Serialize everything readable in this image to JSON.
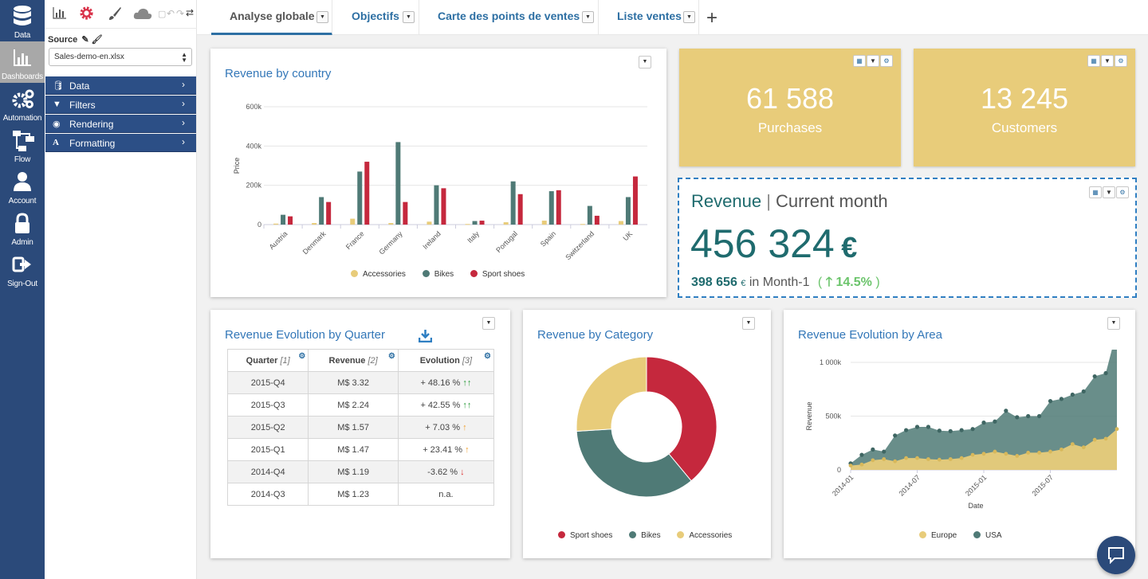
{
  "nav": [
    {
      "label": "Data",
      "icon": "database-icon"
    },
    {
      "label": "Dashboards",
      "icon": "bar-chart-icon",
      "active": true
    },
    {
      "label": "Automation",
      "icon": "gears-icon"
    },
    {
      "label": "Flow",
      "icon": "flow-icon"
    },
    {
      "label": "Account",
      "icon": "user-icon"
    },
    {
      "label": "Admin",
      "icon": "lock-icon"
    },
    {
      "label": "Sign-Out",
      "icon": "sign-out-icon"
    }
  ],
  "panel": {
    "source_label": "Source",
    "source_file": "Sales-demo-en.xlsx",
    "sections": [
      {
        "label": "Data",
        "icon": "database-icon"
      },
      {
        "label": "Filters",
        "icon": "filter-icon"
      },
      {
        "label": "Rendering",
        "icon": "eye-icon"
      },
      {
        "label": "Formatting",
        "icon": "font-icon"
      }
    ]
  },
  "tabs": [
    {
      "label": "Analyse globale",
      "active": true
    },
    {
      "label": "Objectifs"
    },
    {
      "label": "Carte des points de ventes"
    },
    {
      "label": "Liste ventes"
    }
  ],
  "add_tab": "+",
  "colors": {
    "accessories": "#e8cc7a",
    "bikes": "#4f7a76",
    "sport_shoes": "#c5283d",
    "nav_bg": "#2b4a7a",
    "title_blue": "#3377b8",
    "kpi_bg": "#e8cc7a",
    "revenue_teal": "#1f6b6e"
  },
  "revenue_by_country": {
    "title": "Revenue by country"
  },
  "kpis": [
    {
      "value": "61 588",
      "label": "Purchases"
    },
    {
      "value": "13 245",
      "label": "Customers"
    }
  ],
  "revenue_month": {
    "title_main": "Revenue",
    "title_sep": " | ",
    "title_sub": "Current month",
    "value": "456 324",
    "currency": "€",
    "prev_value": "398 656",
    "prev_currency": "€",
    "prev_label": "in Month-1",
    "change_open": "(",
    "change": "14.5%",
    "change_close": ")"
  },
  "quarter": {
    "title": "Revenue Evolution by Quarter",
    "headers": [
      {
        "label": "Quarter",
        "idx": "[1]"
      },
      {
        "label": "Revenue",
        "idx": "[2]"
      },
      {
        "label": "Evolution",
        "idx": "[3]"
      }
    ],
    "rows": [
      {
        "q": "2015-Q4",
        "rev": "M$ 3.32",
        "evo": "+ 48.16 %",
        "arrow": "↑↑",
        "cls": "up-g"
      },
      {
        "q": "2015-Q3",
        "rev": "M$ 2.24",
        "evo": "+ 42.55 %",
        "arrow": "↑↑",
        "cls": "up-g"
      },
      {
        "q": "2015-Q2",
        "rev": "M$ 1.57",
        "evo": "+ 7.03 %",
        "arrow": "↑",
        "cls": "up-o"
      },
      {
        "q": "2015-Q1",
        "rev": "M$ 1.47",
        "evo": "+ 23.41 %",
        "arrow": "↑",
        "cls": "up-o"
      },
      {
        "q": "2014-Q4",
        "rev": "M$ 1.19",
        "evo": "-3.62 %",
        "arrow": "↓",
        "cls": "dn-r"
      },
      {
        "q": "2014-Q3",
        "rev": "M$ 1.23",
        "evo": "n.a.",
        "arrow": "",
        "cls": ""
      }
    ]
  },
  "category": {
    "title": "Revenue by Category"
  },
  "area": {
    "title": "Revenue Evolution by Area"
  },
  "chart_data": [
    {
      "type": "bar",
      "title": "Revenue by country",
      "ylabel": "Price",
      "xlabel": "",
      "ylim": [
        0,
        600000
      ],
      "yticks": [
        "0",
        "200k",
        "400k",
        "600k"
      ],
      "categories": [
        "Austria",
        "Denmark",
        "France",
        "Germany",
        "Ireland",
        "Italy",
        "Portugal",
        "Spain",
        "Switzerland",
        "UK"
      ],
      "series": [
        {
          "name": "Accessories",
          "values": [
            5000,
            8000,
            30000,
            8000,
            15000,
            3000,
            12000,
            20000,
            3000,
            18000
          ]
        },
        {
          "name": "Bikes",
          "values": [
            50000,
            140000,
            270000,
            420000,
            200000,
            18000,
            220000,
            170000,
            95000,
            140000
          ]
        },
        {
          "name": "Sport shoes",
          "values": [
            42000,
            115000,
            320000,
            115000,
            185000,
            20000,
            155000,
            175000,
            45000,
            245000
          ]
        }
      ],
      "legend": "bottom"
    },
    {
      "type": "pie",
      "title": "Revenue by Category",
      "categories": [
        "Sport shoes",
        "Bikes",
        "Accessories"
      ],
      "values": [
        39,
        35,
        26
      ],
      "legend": "bottom"
    },
    {
      "type": "area",
      "title": "Revenue Evolution by Area",
      "xlabel": "Date",
      "ylabel": "Revenue",
      "yticks": [
        "0",
        "500k",
        "1 000k"
      ],
      "ylim": [
        0,
        1000000
      ],
      "xticks": [
        "2014-01",
        "2014-07",
        "2015-01",
        "2015-07"
      ],
      "x": [
        "2014-01",
        "2014-02",
        "2014-03",
        "2014-04",
        "2014-05",
        "2014-06",
        "2014-07",
        "2014-08",
        "2014-09",
        "2014-10",
        "2014-11",
        "2014-12",
        "2015-01",
        "2015-02",
        "2015-03",
        "2015-04",
        "2015-05",
        "2015-06",
        "2015-07",
        "2015-08",
        "2015-09",
        "2015-10",
        "2015-11",
        "2015-12",
        "2016-01"
      ],
      "series": [
        {
          "name": "Europe",
          "values": [
            40000,
            50000,
            90000,
            100000,
            80000,
            110000,
            110000,
            100000,
            95000,
            100000,
            110000,
            140000,
            150000,
            170000,
            150000,
            130000,
            160000,
            160000,
            170000,
            190000,
            240000,
            210000,
            280000,
            290000,
            380000
          ]
        },
        {
          "name": "USA",
          "values": [
            20000,
            90000,
            100000,
            70000,
            240000,
            260000,
            290000,
            300000,
            270000,
            260000,
            260000,
            240000,
            290000,
            280000,
            400000,
            360000,
            340000,
            340000,
            470000,
            470000,
            460000,
            520000,
            590000,
            610000,
            920000
          ]
        }
      ],
      "legend": "bottom"
    }
  ]
}
